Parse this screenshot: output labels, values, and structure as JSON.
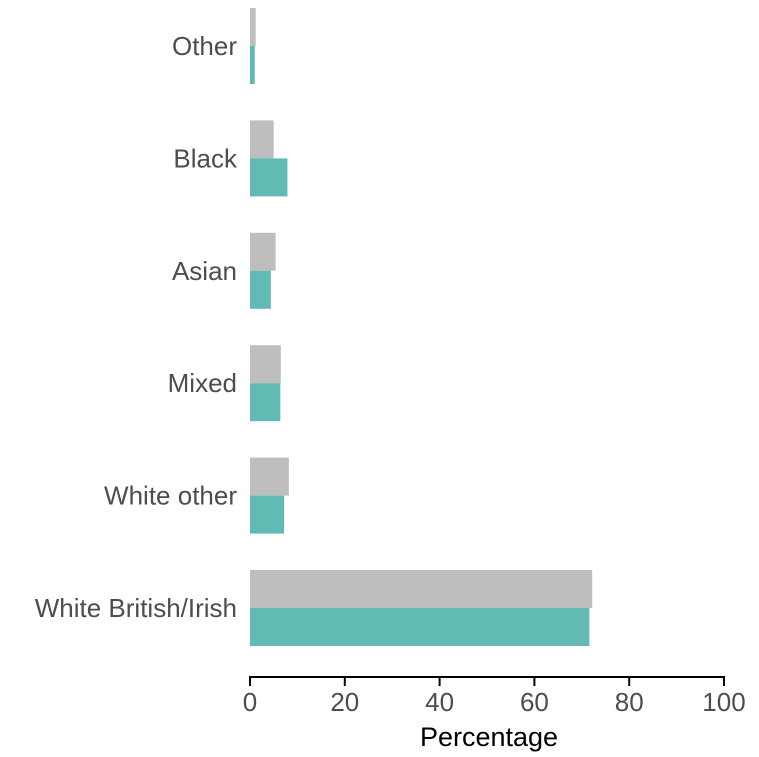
{
  "chart_data": {
    "type": "bar",
    "orientation": "horizontal",
    "categories": [
      "White British/Irish",
      "White other",
      "Mixed",
      "Asian",
      "Black",
      "Other"
    ],
    "series": [
      {
        "color": "#bebebe",
        "values": [
          72.2,
          8.2,
          6.5,
          5.4,
          5.0,
          1.2
        ]
      },
      {
        "color": "#62bab4",
        "values": [
          71.6,
          7.2,
          6.4,
          4.4,
          7.9,
          1.0
        ]
      }
    ],
    "xlabel": "Percentage",
    "xlim": [
      0,
      100
    ],
    "xticks": [
      "0",
      "20",
      "40",
      "60",
      "80",
      "100"
    ],
    "grid": false,
    "legend": "none"
  }
}
